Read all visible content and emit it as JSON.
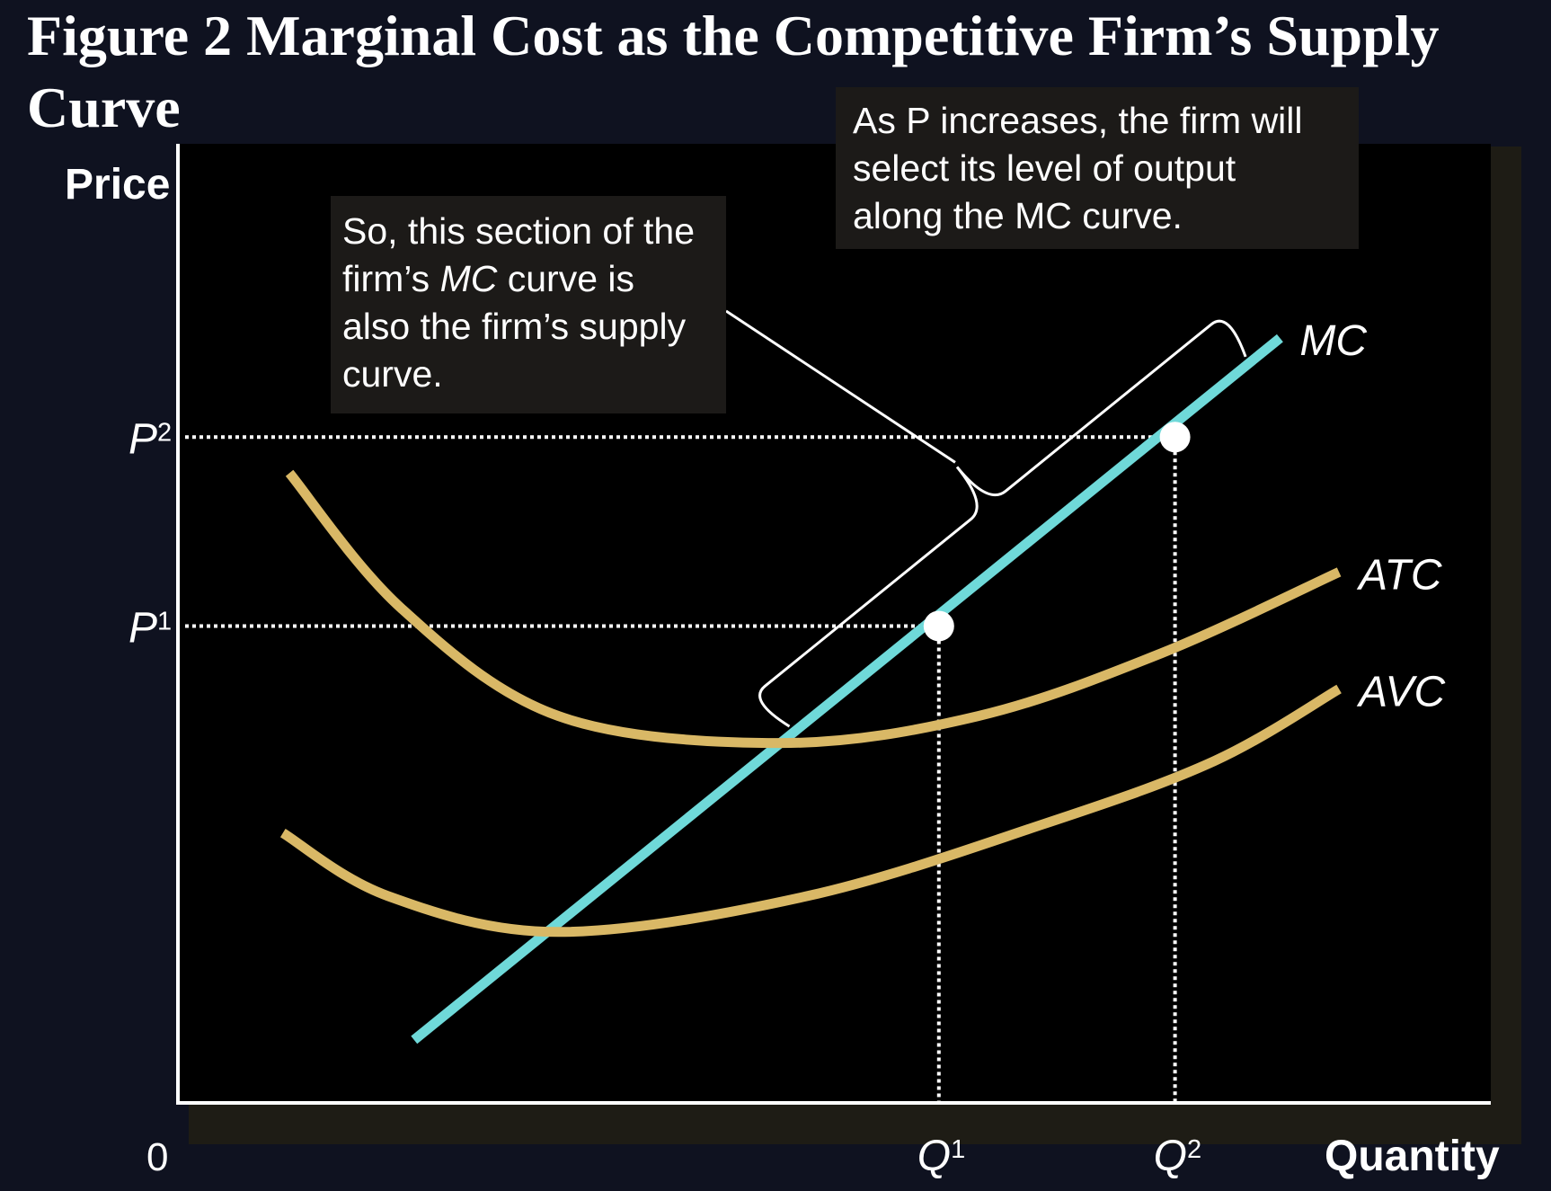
{
  "title": "Figure 2 Marginal Cost as the Competitive Firm’s Supply Curve",
  "chart_data": {
    "type": "line",
    "title": "Figure 2 Marginal Cost as the Competitive Firm’s Supply Curve",
    "xlabel": "Quantity",
    "ylabel": "Price",
    "origin_label": "0",
    "xlim": [
      0,
      10
    ],
    "ylim": [
      0,
      10
    ],
    "series": [
      {
        "name": "MC",
        "color": "#6fd9d9",
        "points": [
          [
            1.8,
            0.7
          ],
          [
            8.4,
            8.5
          ]
        ]
      },
      {
        "name": "ATC",
        "color": "#d9b866",
        "points": [
          [
            0.85,
            7.0
          ],
          [
            1.7,
            5.5
          ],
          [
            2.9,
            4.3
          ],
          [
            4.6,
            4.0
          ],
          [
            6.1,
            4.3
          ],
          [
            7.5,
            5.0
          ],
          [
            8.85,
            5.9
          ]
        ]
      },
      {
        "name": "AVC",
        "color": "#d9b866",
        "points": [
          [
            0.8,
            3.0
          ],
          [
            1.6,
            2.3
          ],
          [
            2.9,
            1.9
          ],
          [
            4.8,
            2.3
          ],
          [
            6.6,
            3.1
          ],
          [
            7.9,
            3.8
          ],
          [
            8.85,
            4.6
          ]
        ]
      }
    ],
    "points": [
      {
        "x": 5.8,
        "y": 5.3,
        "xlabel": "Q",
        "xsub": "1",
        "ylabel": "P",
        "ysub": "1"
      },
      {
        "x": 7.6,
        "y": 7.4,
        "xlabel": "Q",
        "xsub": "2",
        "ylabel": "P",
        "ysub": "2"
      }
    ],
    "annotations": {
      "supply_section": {
        "text": [
          "So, this section of the",
          "firm’s ",
          "MC",
          " curve is",
          "also the firm’s supply",
          "curve."
        ]
      },
      "price_increase": {
        "text": [
          "As P increases, the firm will",
          "select its level of output",
          "along the MC curve."
        ]
      }
    },
    "grid": false,
    "colors": {
      "background": "#000000",
      "page": "#0f1220",
      "mc": "#6fd9d9",
      "cost_curves": "#d9b866"
    }
  }
}
